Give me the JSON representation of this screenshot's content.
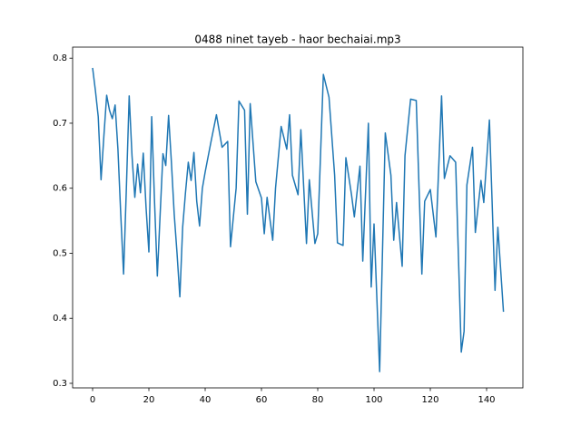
{
  "chart_data": {
    "type": "line",
    "title": "0488 ninet tayeb - haor bechaiai.mp3",
    "x": [
      0,
      1,
      2,
      3,
      4,
      5,
      6,
      7,
      8,
      9,
      10,
      11,
      12,
      13,
      14,
      15,
      16,
      17,
      18,
      19,
      20,
      21,
      22,
      23,
      24,
      25,
      26,
      27,
      28,
      29,
      30,
      31,
      32,
      33,
      34,
      35,
      36,
      37,
      38,
      39,
      40,
      42,
      44,
      46,
      48,
      49,
      51,
      52,
      54,
      55,
      56,
      58,
      60,
      61,
      62,
      64,
      65,
      67,
      69,
      70,
      71,
      73,
      74,
      76,
      77,
      79,
      80,
      82,
      84,
      86,
      87,
      89,
      90,
      92,
      93,
      95,
      96,
      98,
      99,
      100,
      102,
      104,
      106,
      107,
      108,
      110,
      111,
      113,
      115,
      116,
      117,
      118,
      120,
      122,
      124,
      125,
      127,
      129,
      131,
      132,
      133,
      135,
      136,
      138,
      139,
      141,
      143,
      144,
      146
    ],
    "series": [
      {
        "color": "#1f77b4",
        "values": [
          0.785,
          0.75,
          0.71,
          0.613,
          0.68,
          0.743,
          0.72,
          0.707,
          0.728,
          0.66,
          0.56,
          0.468,
          0.6,
          0.742,
          0.65,
          0.586,
          0.637,
          0.593,
          0.654,
          0.57,
          0.502,
          0.71,
          0.58,
          0.465,
          0.56,
          0.653,
          0.635,
          0.712,
          0.64,
          0.56,
          0.5,
          0.433,
          0.54,
          0.593,
          0.64,
          0.612,
          0.655,
          0.58,
          0.542,
          0.6,
          0.625,
          0.67,
          0.713,
          0.663,
          0.672,
          0.51,
          0.6,
          0.734,
          0.72,
          0.56,
          0.73,
          0.61,
          0.585,
          0.53,
          0.586,
          0.52,
          0.6,
          0.695,
          0.66,
          0.713,
          0.62,
          0.59,
          0.69,
          0.515,
          0.613,
          0.515,
          0.53,
          0.775,
          0.74,
          0.62,
          0.516,
          0.512,
          0.647,
          0.59,
          0.556,
          0.634,
          0.488,
          0.7,
          0.448,
          0.545,
          0.318,
          0.685,
          0.62,
          0.52,
          0.578,
          0.48,
          0.65,
          0.737,
          0.735,
          0.6,
          0.468,
          0.58,
          0.598,
          0.525,
          0.742,
          0.615,
          0.65,
          0.64,
          0.348,
          0.38,
          0.605,
          0.663,
          0.532,
          0.612,
          0.578,
          0.705,
          0.443,
          0.54,
          0.41
        ]
      }
    ],
    "xlim": [
      -7.1,
      152.9
    ],
    "ylim": [
      0.293,
      0.817
    ],
    "xticks": [
      0,
      20,
      40,
      60,
      80,
      100,
      120,
      140
    ],
    "yticks": [
      0.3,
      0.4,
      0.5,
      0.6,
      0.7,
      0.8
    ]
  }
}
